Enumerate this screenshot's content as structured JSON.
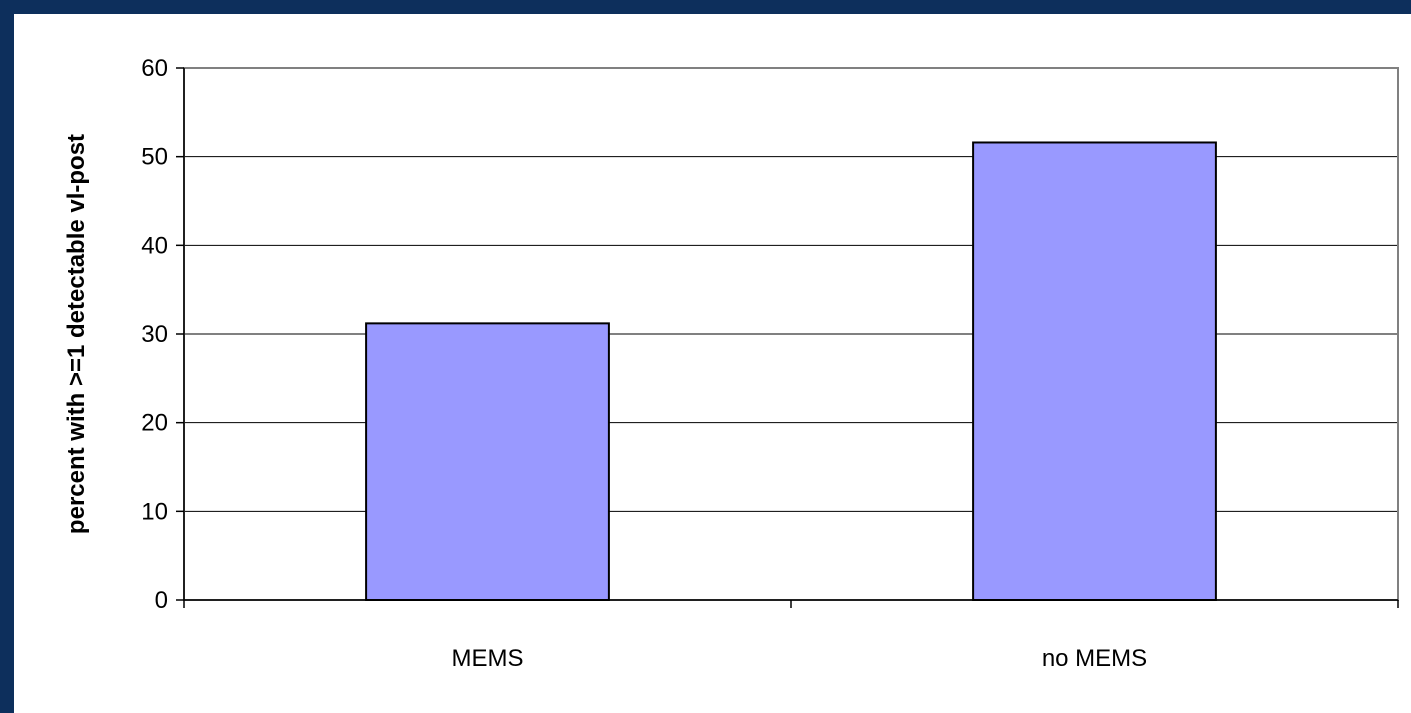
{
  "chart_data": {
    "type": "bar",
    "categories": [
      "MEMS",
      "no MEMS"
    ],
    "values": [
      31.2,
      51.6
    ],
    "title": "",
    "xlabel": "",
    "ylabel": "percent with >=1 detectable vl-post",
    "ylim": [
      0,
      60
    ],
    "yticks": [
      0,
      10,
      20,
      30,
      40,
      50,
      60
    ],
    "grid": true,
    "legend": "none"
  },
  "colors": {
    "bar_fill": "#9999ff",
    "bar_stroke": "#000000",
    "gridline": "#000000",
    "plot_border": "#808080",
    "outer_frame": "#0d2f5c"
  }
}
